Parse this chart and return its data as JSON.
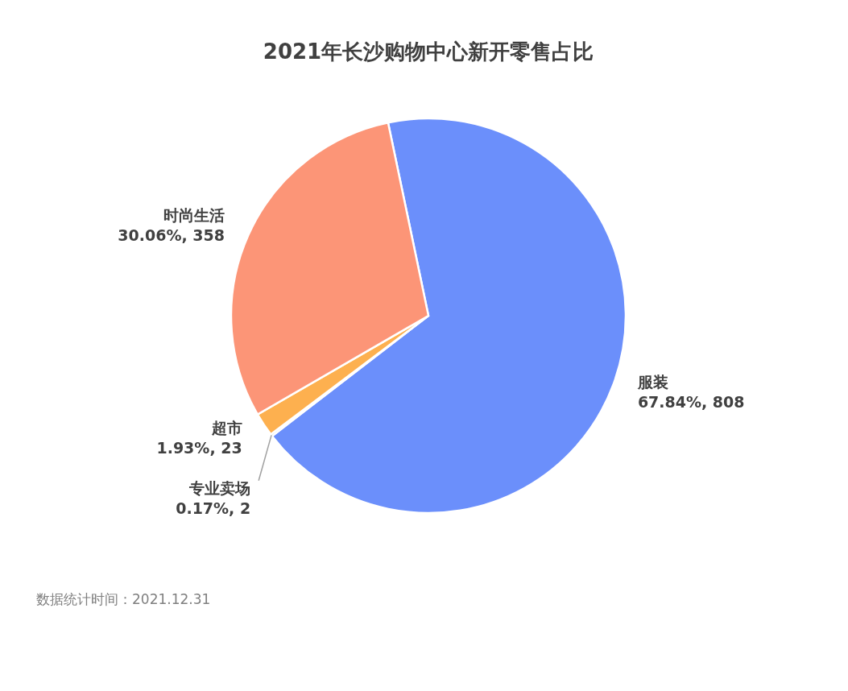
{
  "chart_data": {
    "type": "pie",
    "title": "2021年长沙购物中心新开零售占比",
    "categories": [
      "服装",
      "专业卖场",
      "超市",
      "时尚生活"
    ],
    "values": [
      67.84,
      0.17,
      1.93,
      30.06
    ],
    "value_labels": [
      "67.84%, 808",
      "0.17%, 2",
      "1.93%, 23",
      "30.06%, 358"
    ],
    "colors": [
      "#6b8ffb",
      "#a5a5a5",
      "#fdb04f",
      "#fc9577"
    ],
    "annotations": [
      "数据统计时间：2021.12.31"
    ]
  }
}
